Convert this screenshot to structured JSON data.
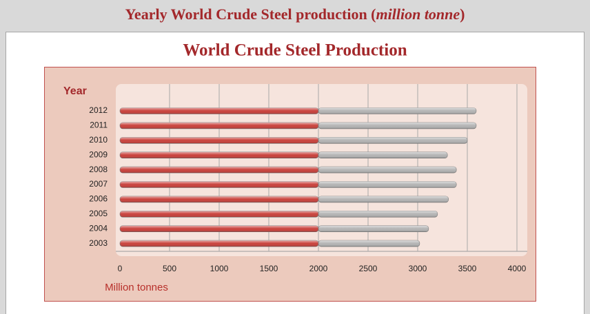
{
  "header": {
    "title_start": "Yearly World Crude Steel production (",
    "title_italic": "million tonne",
    "title_end": ")"
  },
  "chart_data": {
    "type": "bar",
    "orientation": "horizontal",
    "stacked": true,
    "title": "World Crude Steel Production",
    "ylabel": "Year",
    "xlabel": "Million tonnes",
    "categories": [
      "2012",
      "2011",
      "2010",
      "2009",
      "2008",
      "2007",
      "2006",
      "2005",
      "2004",
      "2003"
    ],
    "series": [
      {
        "color": "#c9413b",
        "values": [
          2000,
          2000,
          2000,
          2000,
          2000,
          2000,
          2000,
          2000,
          2000,
          2000
        ]
      },
      {
        "color": "#b4b4b4",
        "values": [
          1590,
          1590,
          1500,
          1300,
          1390,
          1390,
          1310,
          1200,
          1110,
          1020
        ]
      }
    ],
    "xlim": [
      0,
      4000
    ],
    "xticks": [
      0,
      500,
      1000,
      1500,
      2000,
      2500,
      3000,
      3500,
      4000
    ],
    "grid": true
  }
}
